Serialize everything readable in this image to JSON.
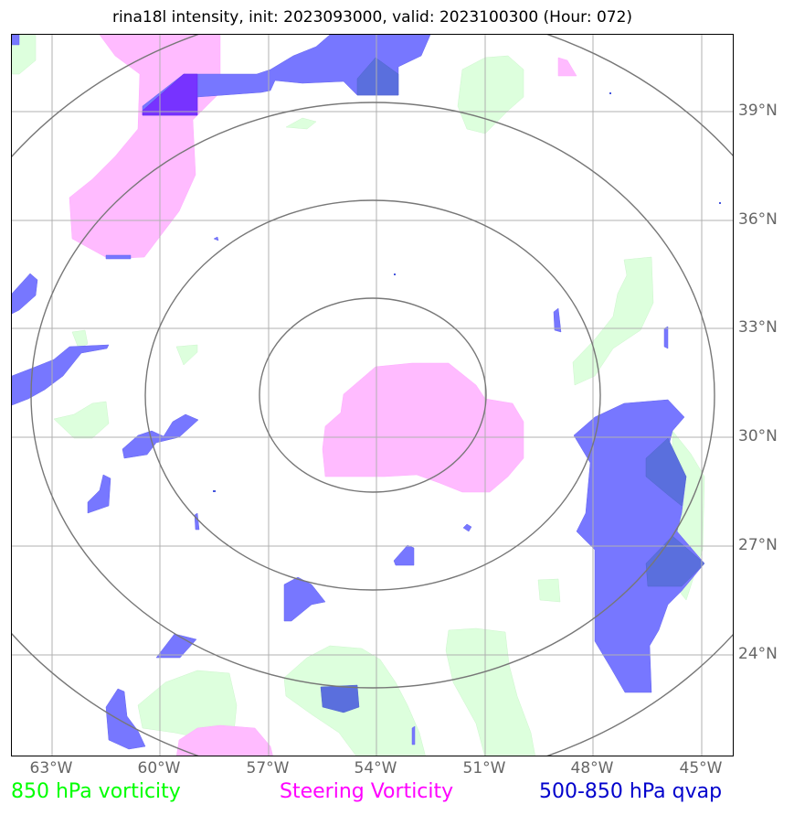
{
  "title": "rina18l intensity, init: 2023093000, valid: 2023100300 (Hour: 072)",
  "lat_labels": [
    "39°N",
    "36°N",
    "33°N",
    "30°N",
    "27°N",
    "24°N"
  ],
  "lon_labels": [
    "63°W",
    "60°W",
    "57°W",
    "54°W",
    "51°W",
    "48°W",
    "45°W"
  ],
  "legend": {
    "green": "850 hPa vorticity",
    "magenta": "Steering Vorticity",
    "blue": "500-850 hPa qvap"
  },
  "colors": {
    "green_fill": "#ddffdd",
    "magenta_fill": "#ffbbff",
    "blue_fill": "#7777ff",
    "blue_dark_fill": "#5a6fdd",
    "purple_fill": "#7733ff",
    "grid": "#b0b0b0",
    "rings": "#777777"
  }
}
